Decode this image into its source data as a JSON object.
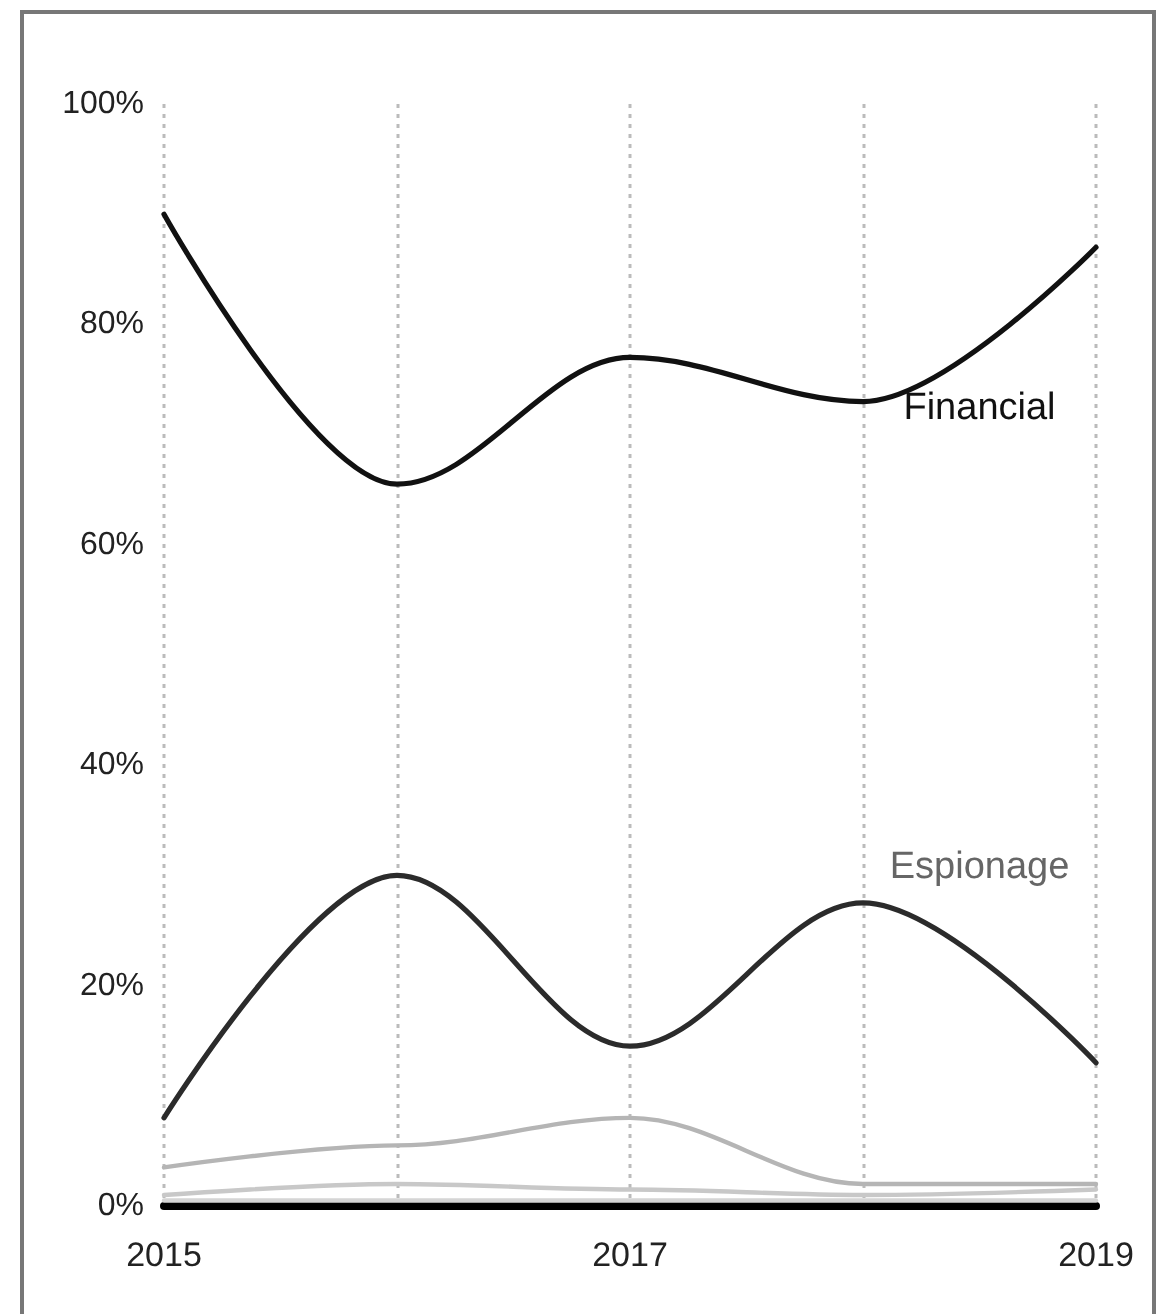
{
  "chart_data": {
    "type": "line",
    "x": [
      2015,
      2016,
      2017,
      2018,
      2019
    ],
    "xlim": [
      2015,
      2019
    ],
    "xticks": [
      2015,
      {
        "value": 2016,
        "label": null
      },
      2017,
      {
        "value": 2018,
        "label": null
      },
      2019
    ],
    "ylim": [
      0,
      100
    ],
    "yticks": [
      {
        "value": 0,
        "label": "0%"
      },
      {
        "value": 20,
        "label": "20%"
      },
      {
        "value": 40,
        "label": "40%"
      },
      {
        "value": 60,
        "label": "60%"
      },
      {
        "value": 80,
        "label": "80%"
      },
      {
        "value": 100,
        "label": "100%"
      }
    ],
    "grid": "x",
    "legend": false,
    "marker": "none",
    "line_style": "solid",
    "series": [
      {
        "name": "Financial",
        "color": "#111111",
        "values": [
          90,
          65.5,
          77,
          73,
          87
        ]
      },
      {
        "name": "Espionage",
        "color": "#2b2b2b",
        "values": [
          8,
          30,
          14.5,
          27.5,
          13
        ]
      },
      {
        "color": "#b5b5b5",
        "values": [
          3.5,
          5.5,
          8,
          2,
          2
        ]
      },
      {
        "color": "#c8c8c8",
        "values": [
          1,
          2,
          1.5,
          1,
          1.5
        ]
      },
      {
        "color": "#d5d5d5",
        "values": [
          0.5,
          0.5,
          0.5,
          0.5,
          0.5
        ]
      }
    ]
  }
}
